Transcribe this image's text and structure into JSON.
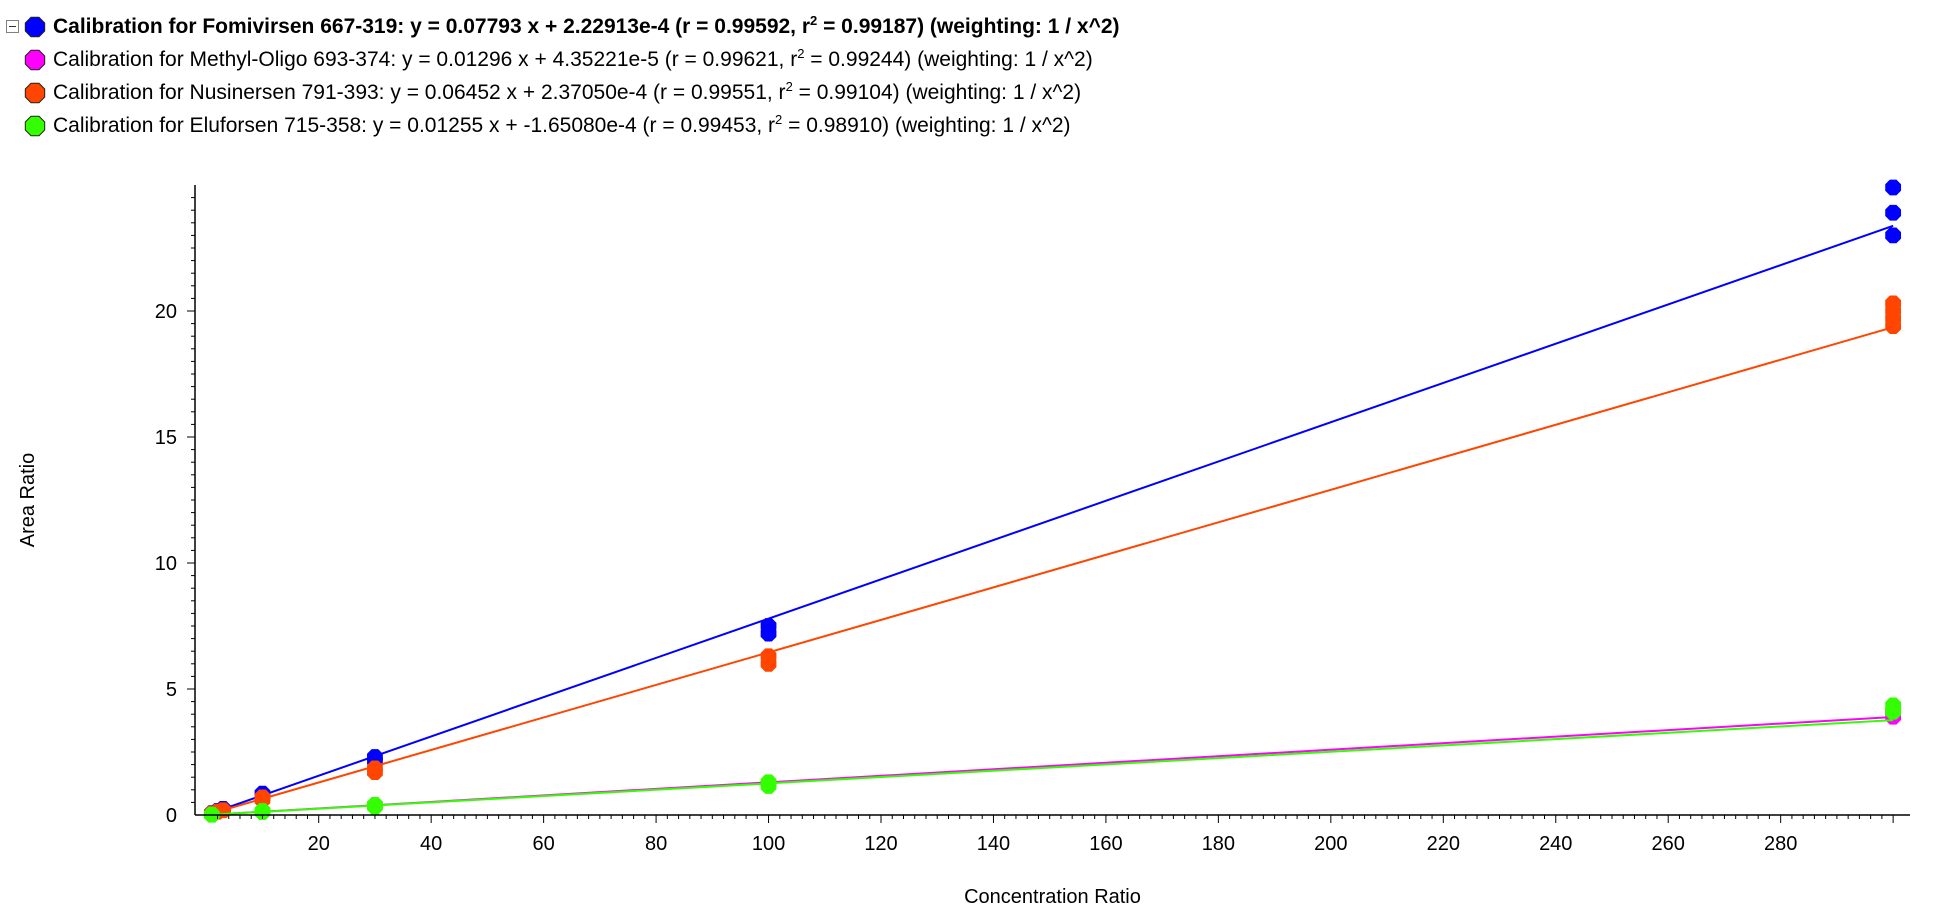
{
  "legend": {
    "collapse_icon": "minus-box-icon",
    "items": [
      {
        "color": "#0000ff",
        "bold": true,
        "text_pre": "Calibration for Fomivirsen 667-319: y = 0.07793 x + 2.22913e-4 (r = 0.99592, r",
        "sup": "2",
        "text_post": " = 0.99187)  (weighting: 1 / x^2)"
      },
      {
        "color": "#ff00ff",
        "bold": false,
        "text_pre": "Calibration for Methyl-Oligo 693-374: y = 0.01296 x + 4.35221e-5 (r = 0.99621, r",
        "sup": "2",
        "text_post": " = 0.99244)  (weighting: 1 / x^2)"
      },
      {
        "color": "#ff4500",
        "bold": false,
        "text_pre": "Calibration for Nusinersen 791-393: y = 0.06452 x + 2.37050e-4 (r = 0.99551, r",
        "sup": "2",
        "text_post": " = 0.99104)  (weighting: 1 / x^2)"
      },
      {
        "color": "#33ff00",
        "bold": false,
        "text_pre": "Calibration for Eluforsen 715-358: y = 0.01255 x + -1.65080e-4 (r = 0.99453, r",
        "sup": "2",
        "text_post": " = 0.98910)  (weighting: 1 / x^2)"
      }
    ]
  },
  "chart_data": {
    "type": "scatter",
    "xlabel": "Concentration Ratio",
    "ylabel": "Area Ratio",
    "xlim": [
      -2,
      303
    ],
    "ylim": [
      0,
      25
    ],
    "xticks": [
      20,
      40,
      60,
      80,
      100,
      120,
      140,
      160,
      180,
      200,
      220,
      240,
      260,
      280
    ],
    "yticks": [
      0,
      5,
      10,
      15,
      20
    ],
    "grid": false,
    "legend_position": "top-left",
    "series": [
      {
        "color": "#0000ff",
        "fit": {
          "slope": 0.07793,
          "intercept": 0.000222913
        },
        "points": [
          [
            1,
            0.08
          ],
          [
            2,
            0.16
          ],
          [
            3,
            0.24
          ],
          [
            10,
            0.72
          ],
          [
            10,
            0.85
          ],
          [
            30,
            2.15
          ],
          [
            30,
            2.3
          ],
          [
            100,
            7.2
          ],
          [
            100,
            7.5
          ],
          [
            300,
            23
          ],
          [
            300,
            23.9
          ],
          [
            300,
            24.9
          ]
        ]
      },
      {
        "color": "#ff00ff",
        "fit": {
          "slope": 0.01296,
          "intercept": 4.35221e-05
        },
        "points": [
          [
            1,
            0.013
          ],
          [
            10,
            0.13
          ],
          [
            30,
            0.39
          ],
          [
            100,
            1.25
          ],
          [
            300,
            3.9
          ],
          [
            300,
            4.1
          ]
        ]
      },
      {
        "color": "#ff4500",
        "fit": {
          "slope": 0.06452,
          "intercept": 0.00023705
        },
        "points": [
          [
            1,
            0.065
          ],
          [
            2,
            0.13
          ],
          [
            3,
            0.19
          ],
          [
            10,
            0.6
          ],
          [
            10,
            0.7
          ],
          [
            30,
            1.7
          ],
          [
            30,
            1.85
          ],
          [
            100,
            6.0
          ],
          [
            100,
            6.3
          ],
          [
            300,
            19.4
          ],
          [
            300,
            19.7
          ],
          [
            300,
            20.0
          ],
          [
            300,
            20.3
          ]
        ]
      },
      {
        "color": "#33ff00",
        "fit": {
          "slope": 0.01255,
          "intercept": -0.00016508
        },
        "points": [
          [
            1,
            0.012
          ],
          [
            10,
            0.12
          ],
          [
            10,
            0.16
          ],
          [
            30,
            0.33
          ],
          [
            30,
            0.4
          ],
          [
            100,
            1.15
          ],
          [
            100,
            1.3
          ],
          [
            300,
            4.1
          ],
          [
            300,
            4.35
          ]
        ]
      }
    ]
  }
}
